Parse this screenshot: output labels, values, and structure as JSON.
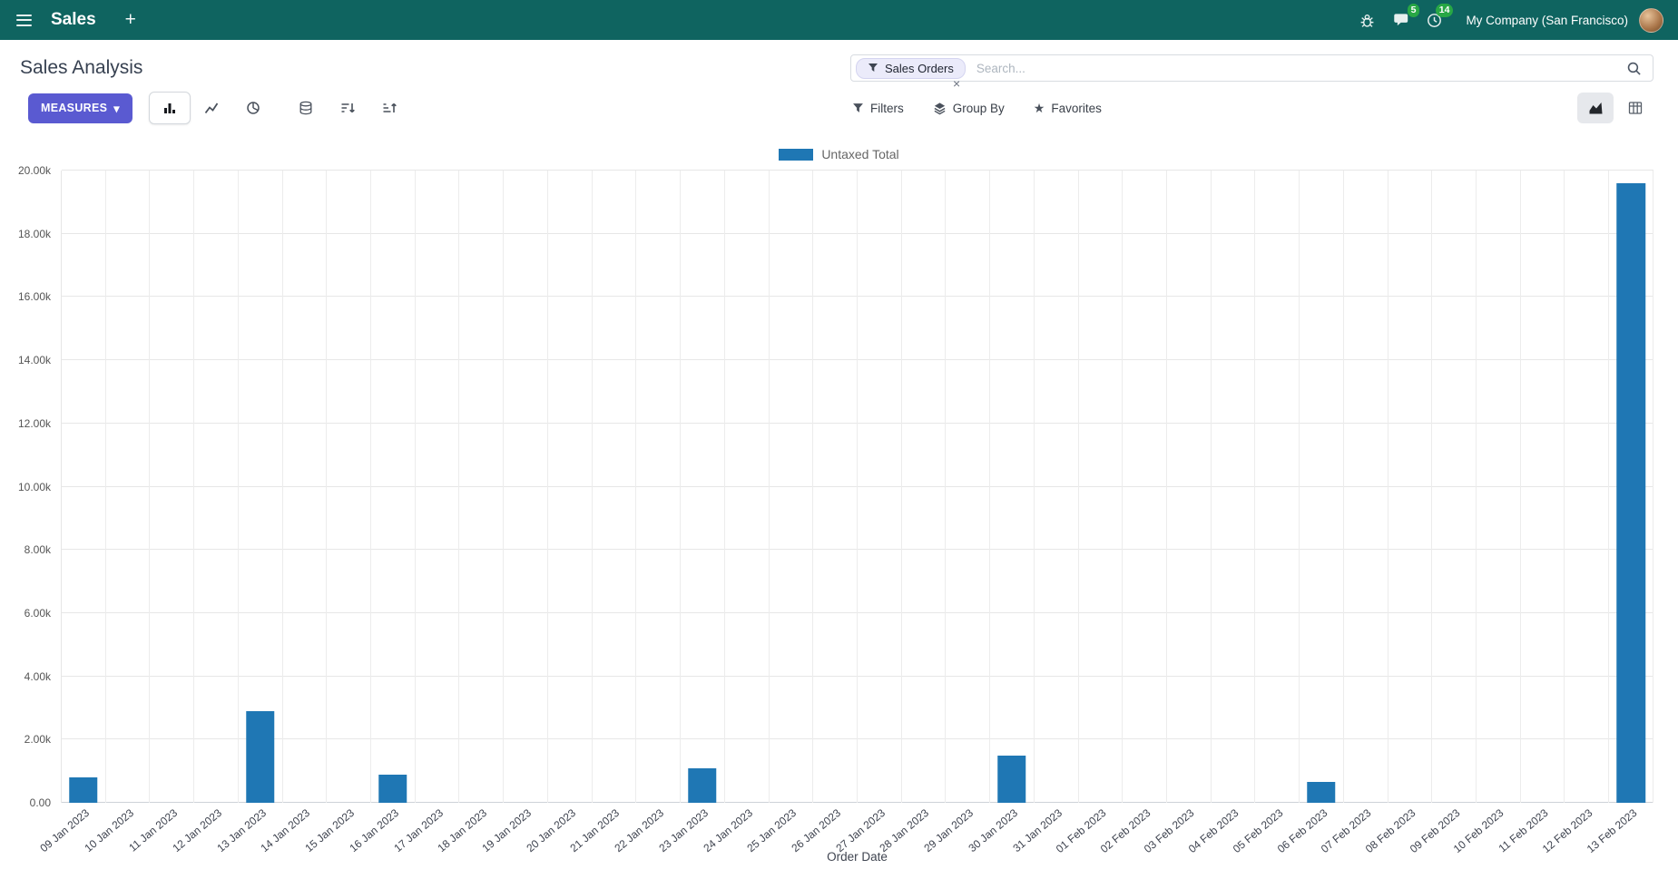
{
  "icons": {
    "plus": "+",
    "caret_down": "▾",
    "star": "★",
    "close": "×"
  },
  "colors": {
    "navbar_bg": "#0f6460",
    "primary_button": "#5a5ad1",
    "bar": "#1f77b4",
    "badge_green": "#28a745"
  },
  "navbar": {
    "app_name": "Sales",
    "message_badge": "5",
    "activity_badge": "14",
    "company": "My Company (San Francisco)"
  },
  "control_panel": {
    "title": "Sales Analysis",
    "search": {
      "facet_label": "Sales Orders",
      "placeholder": "Search..."
    },
    "measures_label": "MEASURES",
    "filters_label": "Filters",
    "group_by_label": "Group By",
    "favorites_label": "Favorites"
  },
  "chart_data": {
    "type": "bar",
    "title": "",
    "legend": [
      "Untaxed Total"
    ],
    "legend_position": "top",
    "grid": true,
    "xlabel": "Order Date",
    "ylabel": "",
    "ylim": [
      0,
      20000
    ],
    "ytick_step": 2000,
    "ytick_labels": [
      "0.00",
      "2.00k",
      "4.00k",
      "6.00k",
      "8.00k",
      "10.00k",
      "12.00k",
      "14.00k",
      "16.00k",
      "18.00k",
      "20.00k"
    ],
    "categories": [
      "09 Jan 2023",
      "10 Jan 2023",
      "11 Jan 2023",
      "12 Jan 2023",
      "13 Jan 2023",
      "14 Jan 2023",
      "15 Jan 2023",
      "16 Jan 2023",
      "17 Jan 2023",
      "18 Jan 2023",
      "19 Jan 2023",
      "20 Jan 2023",
      "21 Jan 2023",
      "22 Jan 2023",
      "23 Jan 2023",
      "24 Jan 2023",
      "25 Jan 2023",
      "26 Jan 2023",
      "27 Jan 2023",
      "28 Jan 2023",
      "29 Jan 2023",
      "30 Jan 2023",
      "31 Jan 2023",
      "01 Feb 2023",
      "02 Feb 2023",
      "03 Feb 2023",
      "04 Feb 2023",
      "05 Feb 2023",
      "06 Feb 2023",
      "07 Feb 2023",
      "08 Feb 2023",
      "09 Feb 2023",
      "10 Feb 2023",
      "11 Feb 2023",
      "12 Feb 2023",
      "13 Feb 2023"
    ],
    "series": [
      {
        "name": "Untaxed Total",
        "color": "#1f77b4",
        "values": [
          800,
          0,
          0,
          0,
          2900,
          0,
          0,
          900,
          0,
          0,
          0,
          0,
          0,
          0,
          1100,
          0,
          0,
          0,
          0,
          0,
          0,
          1500,
          0,
          0,
          0,
          0,
          0,
          0,
          650,
          0,
          0,
          0,
          0,
          0,
          0,
          19600
        ]
      }
    ]
  }
}
